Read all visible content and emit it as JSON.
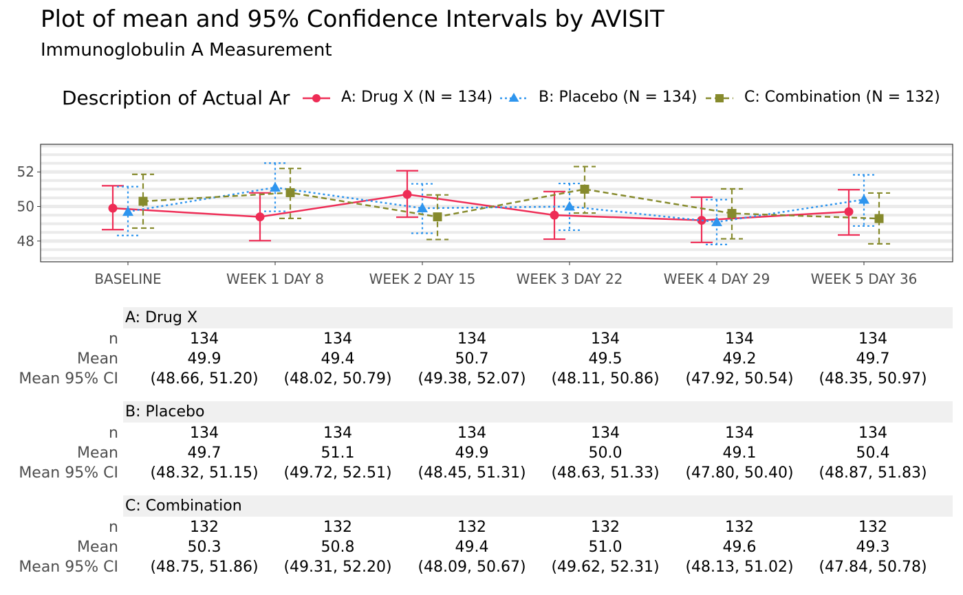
{
  "title": "Plot of mean and 95% Confidence Intervals by AVISIT",
  "subtitle": "Immunoglobulin A Measurement",
  "legend": {
    "title": "Description of Actual Ar",
    "items": [
      {
        "label": "A: Drug X (N = 134)",
        "color": "#ee2c55",
        "marker": "circle",
        "linestyle": "solid"
      },
      {
        "label": "B: Placebo (N = 134)",
        "color": "#2e95ee",
        "marker": "triangle",
        "linestyle": "dotted"
      },
      {
        "label": "C: Combination (N = 132)",
        "color": "#868a2c",
        "marker": "square",
        "linestyle": "dashed"
      }
    ]
  },
  "chart_data": {
    "type": "line",
    "categories": [
      "BASELINE",
      "WEEK 1 DAY 8",
      "WEEK 2 DAY 15",
      "WEEK 3 DAY 22",
      "WEEK 4 DAY 29",
      "WEEK 5 DAY 36"
    ],
    "ylim": [
      46.8,
      53.6
    ],
    "yticks": [
      48,
      50,
      52
    ],
    "grid": true,
    "legend_position": "top",
    "series": [
      {
        "name": "A: Drug X (N = 134)",
        "color": "#ee2c55",
        "values": [
          49.9,
          49.4,
          50.7,
          49.5,
          49.2,
          49.7
        ],
        "lower": [
          48.66,
          48.02,
          49.38,
          48.11,
          47.92,
          48.35
        ],
        "upper": [
          51.2,
          50.79,
          52.07,
          50.86,
          50.54,
          50.97
        ]
      },
      {
        "name": "B: Placebo (N = 134)",
        "color": "#2e95ee",
        "values": [
          49.7,
          51.1,
          49.9,
          50.0,
          49.1,
          50.4
        ],
        "lower": [
          48.32,
          49.72,
          48.45,
          48.63,
          47.8,
          48.87
        ],
        "upper": [
          51.15,
          52.51,
          51.31,
          51.33,
          50.4,
          51.83
        ]
      },
      {
        "name": "C: Combination (N = 132)",
        "color": "#868a2c",
        "values": [
          50.3,
          50.8,
          49.4,
          51.0,
          49.6,
          49.3
        ],
        "lower": [
          48.75,
          49.31,
          48.09,
          49.62,
          48.13,
          47.84
        ],
        "upper": [
          51.86,
          52.2,
          50.67,
          52.31,
          51.02,
          50.78
        ]
      }
    ]
  },
  "table": {
    "row_labels": [
      "n",
      "Mean",
      "Mean 95% CI"
    ],
    "groups": [
      {
        "name": "A: Drug X",
        "n": [
          "134",
          "134",
          "134",
          "134",
          "134",
          "134"
        ],
        "mean": [
          "49.9",
          "49.4",
          "50.7",
          "49.5",
          "49.2",
          "49.7"
        ],
        "ci": [
          "(48.66, 51.20)",
          "(48.02, 50.79)",
          "(49.38, 52.07)",
          "(48.11, 50.86)",
          "(47.92, 50.54)",
          "(48.35, 50.97)"
        ]
      },
      {
        "name": "B: Placebo",
        "n": [
          "134",
          "134",
          "134",
          "134",
          "134",
          "134"
        ],
        "mean": [
          "49.7",
          "51.1",
          "49.9",
          "50.0",
          "49.1",
          "50.4"
        ],
        "ci": [
          "(48.32, 51.15)",
          "(49.72, 52.51)",
          "(48.45, 51.31)",
          "(48.63, 51.33)",
          "(47.80, 50.40)",
          "(48.87, 51.83)"
        ]
      },
      {
        "name": "C: Combination",
        "n": [
          "132",
          "132",
          "132",
          "132",
          "132",
          "132"
        ],
        "mean": [
          "50.3",
          "50.8",
          "49.4",
          "51.0",
          "49.6",
          "49.3"
        ],
        "ci": [
          "(48.75, 51.86)",
          "(49.31, 52.20)",
          "(48.09, 50.67)",
          "(49.62, 52.31)",
          "(48.13, 51.02)",
          "(47.84, 50.78)"
        ]
      }
    ]
  }
}
